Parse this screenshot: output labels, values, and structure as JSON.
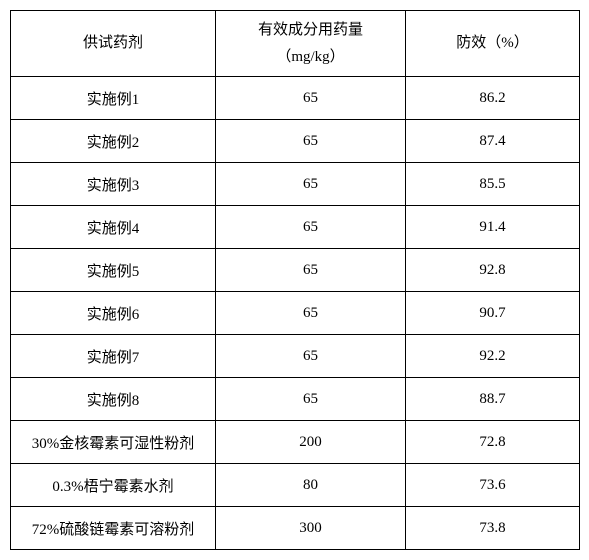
{
  "table": {
    "columns": [
      {
        "label_line1": "供试药剂",
        "label_line2": ""
      },
      {
        "label_line1": "有效成分用药量",
        "label_line2": "（mg/kg）"
      },
      {
        "label_line1": "防效（%）",
        "label_line2": ""
      }
    ],
    "rows": [
      {
        "agent": "实施例1",
        "dose": "65",
        "efficacy": "86.2"
      },
      {
        "agent": "实施例2",
        "dose": "65",
        "efficacy": "87.4"
      },
      {
        "agent": "实施例3",
        "dose": "65",
        "efficacy": "85.5"
      },
      {
        "agent": "实施例4",
        "dose": "65",
        "efficacy": "91.4"
      },
      {
        "agent": "实施例5",
        "dose": "65",
        "efficacy": "92.8"
      },
      {
        "agent": "实施例6",
        "dose": "65",
        "efficacy": "90.7"
      },
      {
        "agent": "实施例7",
        "dose": "65",
        "efficacy": "92.2"
      },
      {
        "agent": "实施例8",
        "dose": "65",
        "efficacy": "88.7"
      },
      {
        "agent": "30%金核霉素可湿性粉剂",
        "dose": "200",
        "efficacy": "72.8"
      },
      {
        "agent": "0.3%梧宁霉素水剂",
        "dose": "80",
        "efficacy": "73.6"
      },
      {
        "agent": "72%硫酸链霉素可溶粉剂",
        "dose": "300",
        "efficacy": "73.8"
      }
    ]
  }
}
